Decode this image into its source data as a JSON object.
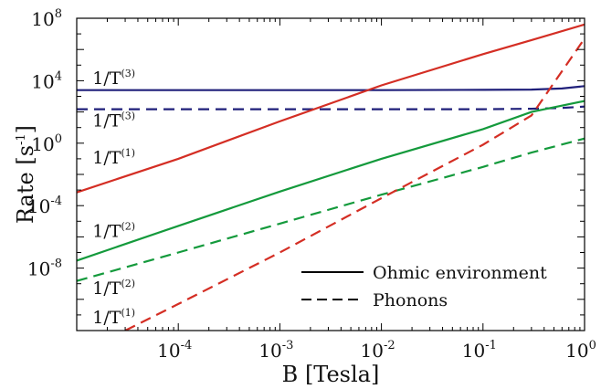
{
  "chart_data": {
    "type": "line",
    "xlabel": "B [Tesla]",
    "ylabel_main": "Rate [s",
    "ylabel_exp": "-1",
    "ylabel_tail": "]",
    "x_scale": "log",
    "y_scale": "log",
    "xlim": [
      1e-05,
      1
    ],
    "ylim": [
      1e-12,
      100000000.0
    ],
    "grid": false,
    "x_ticks": [
      {
        "base": "10",
        "exp": "-4",
        "value": 0.0001
      },
      {
        "base": "10",
        "exp": "-3",
        "value": 0.001
      },
      {
        "base": "10",
        "exp": "-2",
        "value": 0.01
      },
      {
        "base": "10",
        "exp": "-1",
        "value": 0.1
      },
      {
        "base": "10",
        "exp": "0",
        "value": 1
      }
    ],
    "y_ticks": [
      {
        "base": "10",
        "exp": "8",
        "value": 100000000.0
      },
      {
        "base": "10",
        "exp": "4",
        "value": 10000.0
      },
      {
        "base": "10",
        "exp": "0",
        "value": 1
      },
      {
        "base": "10",
        "exp": "-4",
        "value": 0.0001
      },
      {
        "base": "10",
        "exp": "-8",
        "value": 1e-08
      }
    ],
    "legend_position": "bottom-right",
    "legend": [
      {
        "label": "Ohmic environment",
        "dash": "solid"
      },
      {
        "label": "Phonons",
        "dash": "dashed"
      }
    ],
    "series": [
      {
        "id": "T3_ohmic",
        "color": "#1f1f7a",
        "dash": "solid",
        "x": [
          1e-05,
          0.0001,
          0.001,
          0.01,
          0.1,
          0.3,
          0.6,
          1.0
        ],
        "y": [
          2500,
          2500,
          2500,
          2500,
          2600,
          2700,
          3200,
          4500
        ]
      },
      {
        "id": "T3_phonon",
        "color": "#1f1f7a",
        "dash": "dashed",
        "x": [
          1e-05,
          0.0001,
          0.001,
          0.01,
          0.1,
          0.3,
          0.6,
          1.0
        ],
        "y": [
          150,
          150,
          150,
          150,
          150,
          160,
          180,
          220
        ]
      },
      {
        "id": "T1_ohmic",
        "color": "#d42e24",
        "dash": "solid",
        "x": [
          1e-05,
          0.0001,
          0.001,
          0.01,
          0.1,
          0.3,
          1.0
        ],
        "y": [
          0.0007,
          0.1,
          25,
          5000,
          500000,
          4000000,
          40000000
        ]
      },
      {
        "id": "T2_ohmic",
        "color": "#149a3c",
        "dash": "solid",
        "x": [
          1e-05,
          0.0001,
          0.001,
          0.01,
          0.1,
          0.3,
          1.0
        ],
        "y": [
          3e-08,
          5e-06,
          0.0008,
          0.1,
          8,
          100,
          500
        ]
      },
      {
        "id": "T2_phonon",
        "color": "#149a3c",
        "dash": "dashed",
        "x": [
          1e-05,
          0.0001,
          0.001,
          0.01,
          0.1,
          0.3,
          1.0
        ],
        "y": [
          1.5e-09,
          1e-07,
          7e-06,
          0.0005,
          0.03,
          0.25,
          2
        ]
      },
      {
        "id": "T1_phonon",
        "color": "#d42e24",
        "dash": "dashed",
        "x": [
          3e-05,
          0.0001,
          0.001,
          0.01,
          0.1,
          0.3,
          1.0
        ],
        "y": [
          1e-12,
          5e-11,
          1e-07,
          0.0003,
          0.8,
          60,
          5000000
        ]
      }
    ],
    "curve_labels": [
      {
        "series": "T3_ohmic",
        "text": "1/T",
        "sup": "(3)",
        "x": 1.43e-05,
        "y": 6000
      },
      {
        "series": "T3_phonon",
        "text": "1/T",
        "sup": "(3)",
        "x": 1.43e-05,
        "y": 12
      },
      {
        "series": "T1_ohmic",
        "text": "1/T",
        "sup": "(1)",
        "x": 1.43e-05,
        "y": 0.05
      },
      {
        "series": "T2_ohmic",
        "text": "1/T",
        "sup": "(2)",
        "x": 1.43e-05,
        "y": 1e-06
      },
      {
        "series": "T2_phonon",
        "text": "1/T",
        "sup": "(2)",
        "x": 1.43e-05,
        "y": 2.2e-10
      },
      {
        "series": "T1_phonon",
        "text": "1/T",
        "sup": "(1)",
        "x": 1.43e-05,
        "y": 3e-12
      }
    ]
  }
}
